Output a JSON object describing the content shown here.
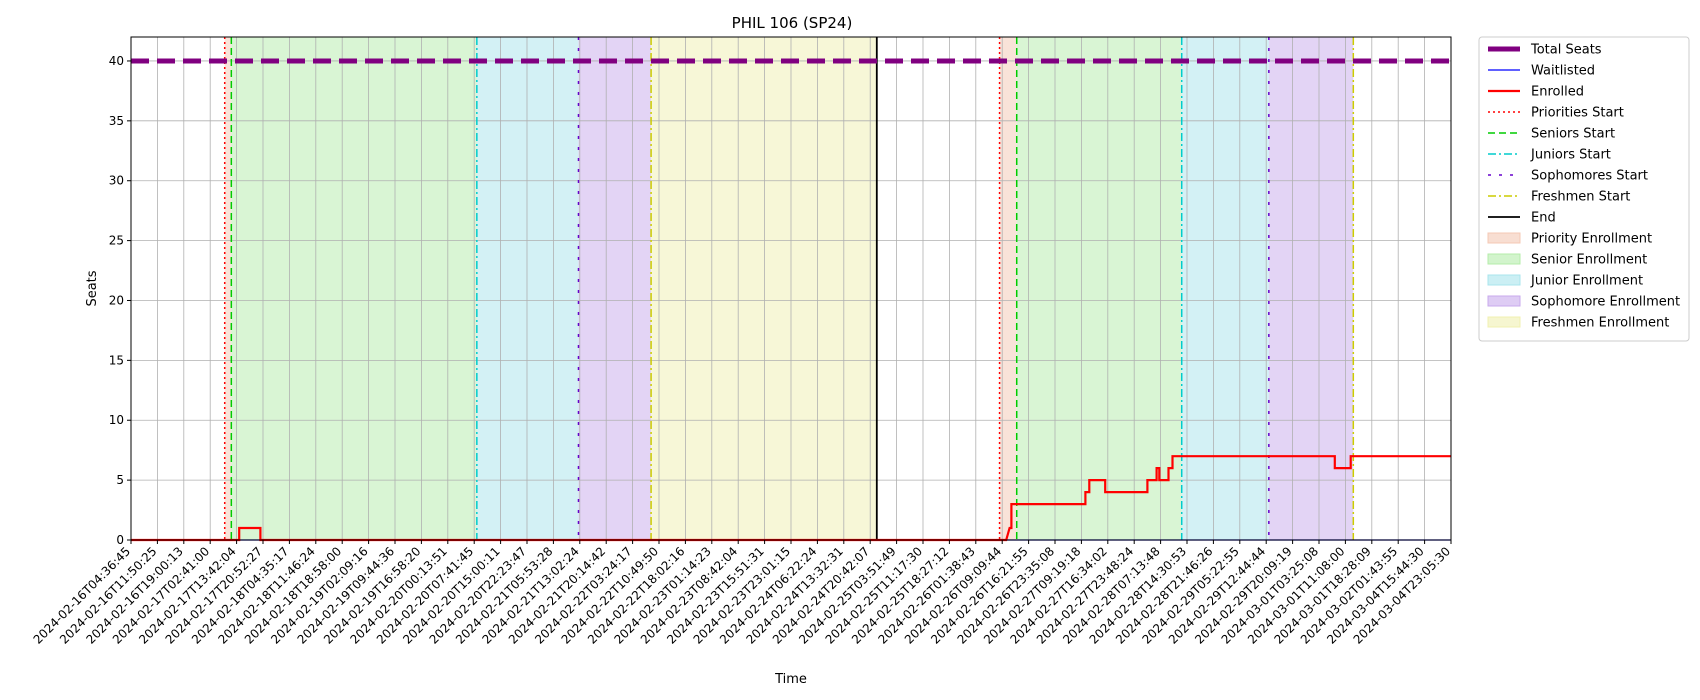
{
  "chart_data": {
    "type": "line",
    "title": "PHIL 106 (SP24)",
    "xlabel": "Time",
    "ylabel": "Seats",
    "ylim": [
      0,
      42
    ],
    "xlim": [
      "2024-02-16T04:36:45",
      "2024-03-04T23:05:30"
    ],
    "yticks": [
      0,
      5,
      10,
      15,
      20,
      25,
      30,
      35,
      40
    ],
    "grid": true,
    "legend_position": "outside-right-top",
    "xtick_labels": [
      "2024-02-16T04:36:45",
      "2024-02-16T11:50:25",
      "2024-02-16T19:00:13",
      "2024-02-17T02:41:00",
      "2024-02-17T13:42:04",
      "2024-02-17T20:52:27",
      "2024-02-18T04:35:17",
      "2024-02-18T11:46:24",
      "2024-02-18T18:58:00",
      "2024-02-19T02:09:16",
      "2024-02-19T09:44:36",
      "2024-02-19T16:58:20",
      "2024-02-20T00:13:51",
      "2024-02-20T07:41:45",
      "2024-02-20T15:00:11",
      "2024-02-20T22:23:47",
      "2024-02-21T05:53:28",
      "2024-02-21T13:02:24",
      "2024-02-21T20:14:42",
      "2024-02-22T03:24:17",
      "2024-02-22T10:49:50",
      "2024-02-22T18:02:16",
      "2024-02-23T01:14:23",
      "2024-02-23T08:42:04",
      "2024-02-23T15:51:31",
      "2024-02-23T23:01:15",
      "2024-02-24T06:22:24",
      "2024-02-24T13:32:31",
      "2024-02-24T20:42:07",
      "2024-02-25T03:51:49",
      "2024-02-25T11:17:30",
      "2024-02-25T18:27:12",
      "2024-02-26T01:38:43",
      "2024-02-26T09:09:44",
      "2024-02-26T16:21:55",
      "2024-02-26T23:35:08",
      "2024-02-27T09:19:18",
      "2024-02-27T16:34:02",
      "2024-02-27T23:48:24",
      "2024-02-28T07:13:48",
      "2024-02-28T14:30:53",
      "2024-02-28T21:46:26",
      "2024-02-29T05:22:55",
      "2024-02-29T12:44:44",
      "2024-02-29T20:09:19",
      "2024-03-01T03:25:08",
      "2024-03-01T11:08:00",
      "2024-03-01T18:28:09",
      "2024-03-02T01:43:55",
      "2024-03-04T15:44:30",
      "2024-03-04T23:05:30"
    ],
    "series": [
      {
        "name": "Total Seats",
        "color": "#800080",
        "style": "dashed",
        "x": [
          0,
          50
        ],
        "y": [
          40,
          40
        ]
      },
      {
        "name": "Waitlisted",
        "color": "#0000ff",
        "style": "solid",
        "x": [
          0,
          50
        ],
        "y": [
          0,
          0
        ]
      },
      {
        "name": "Enrolled",
        "color": "#ff0000",
        "style": "solid",
        "x": [
          0,
          4.1,
          4.1,
          4.9,
          4.9,
          33.15,
          33.28,
          33.35,
          33.35,
          36.15,
          36.15,
          36.3,
          36.3,
          36.9,
          36.9,
          38.5,
          38.5,
          38.85,
          38.85,
          38.95,
          38.95,
          39.3,
          39.3,
          39.45,
          39.45,
          45.6,
          45.6,
          46.2,
          46.2,
          50
        ],
        "y": [
          0,
          0,
          1,
          1,
          0,
          0,
          1,
          1,
          3,
          3,
          4,
          4,
          5,
          5,
          4,
          4,
          5,
          5,
          6,
          6,
          5,
          5,
          6,
          6,
          7,
          7,
          6,
          6,
          7,
          7
        ]
      }
    ],
    "phase_lines": [
      {
        "name": "Priorities Start",
        "color": "#ff0000",
        "style": "dotted",
        "x": [
          3.55,
          32.9
        ]
      },
      {
        "name": "Seniors Start",
        "color": "#00cc00",
        "style": "dashed",
        "x": [
          3.8,
          33.55
        ]
      },
      {
        "name": "Juniors Start",
        "color": "#00cccc",
        "style": "dashdot",
        "x": [
          13.1,
          39.8
        ]
      },
      {
        "name": "Sophomores Start",
        "color": "#6600cc",
        "style": "loosedash",
        "x": [
          16.95,
          43.1
        ]
      },
      {
        "name": "Freshmen Start",
        "color": "#cccc00",
        "style": "dashdot",
        "x": [
          19.7,
          46.3
        ]
      },
      {
        "name": "End",
        "color": "#000000",
        "style": "solid",
        "x": [
          28.25
        ]
      }
    ],
    "phase_spans": [
      {
        "name": "Priority Enrollment",
        "color": "#f4c8b4",
        "ranges": [
          [
            3.55,
            3.8
          ],
          [
            32.9,
            33.55
          ]
        ]
      },
      {
        "name": "Senior Enrollment",
        "color": "#b4ecaa",
        "ranges": [
          [
            3.8,
            13.1
          ],
          [
            33.55,
            39.8
          ]
        ]
      },
      {
        "name": "Junior Enrollment",
        "color": "#a8e4ec",
        "ranges": [
          [
            13.1,
            16.95
          ],
          [
            39.8,
            43.1
          ]
        ]
      },
      {
        "name": "Sophomore Enrollment",
        "color": "#c8aaec",
        "ranges": [
          [
            16.95,
            19.7
          ],
          [
            43.1,
            46.3
          ]
        ]
      },
      {
        "name": "Freshmen Enrollment",
        "color": "#f0f0b0",
        "ranges": [
          [
            19.7,
            28.25
          ]
        ]
      }
    ]
  }
}
